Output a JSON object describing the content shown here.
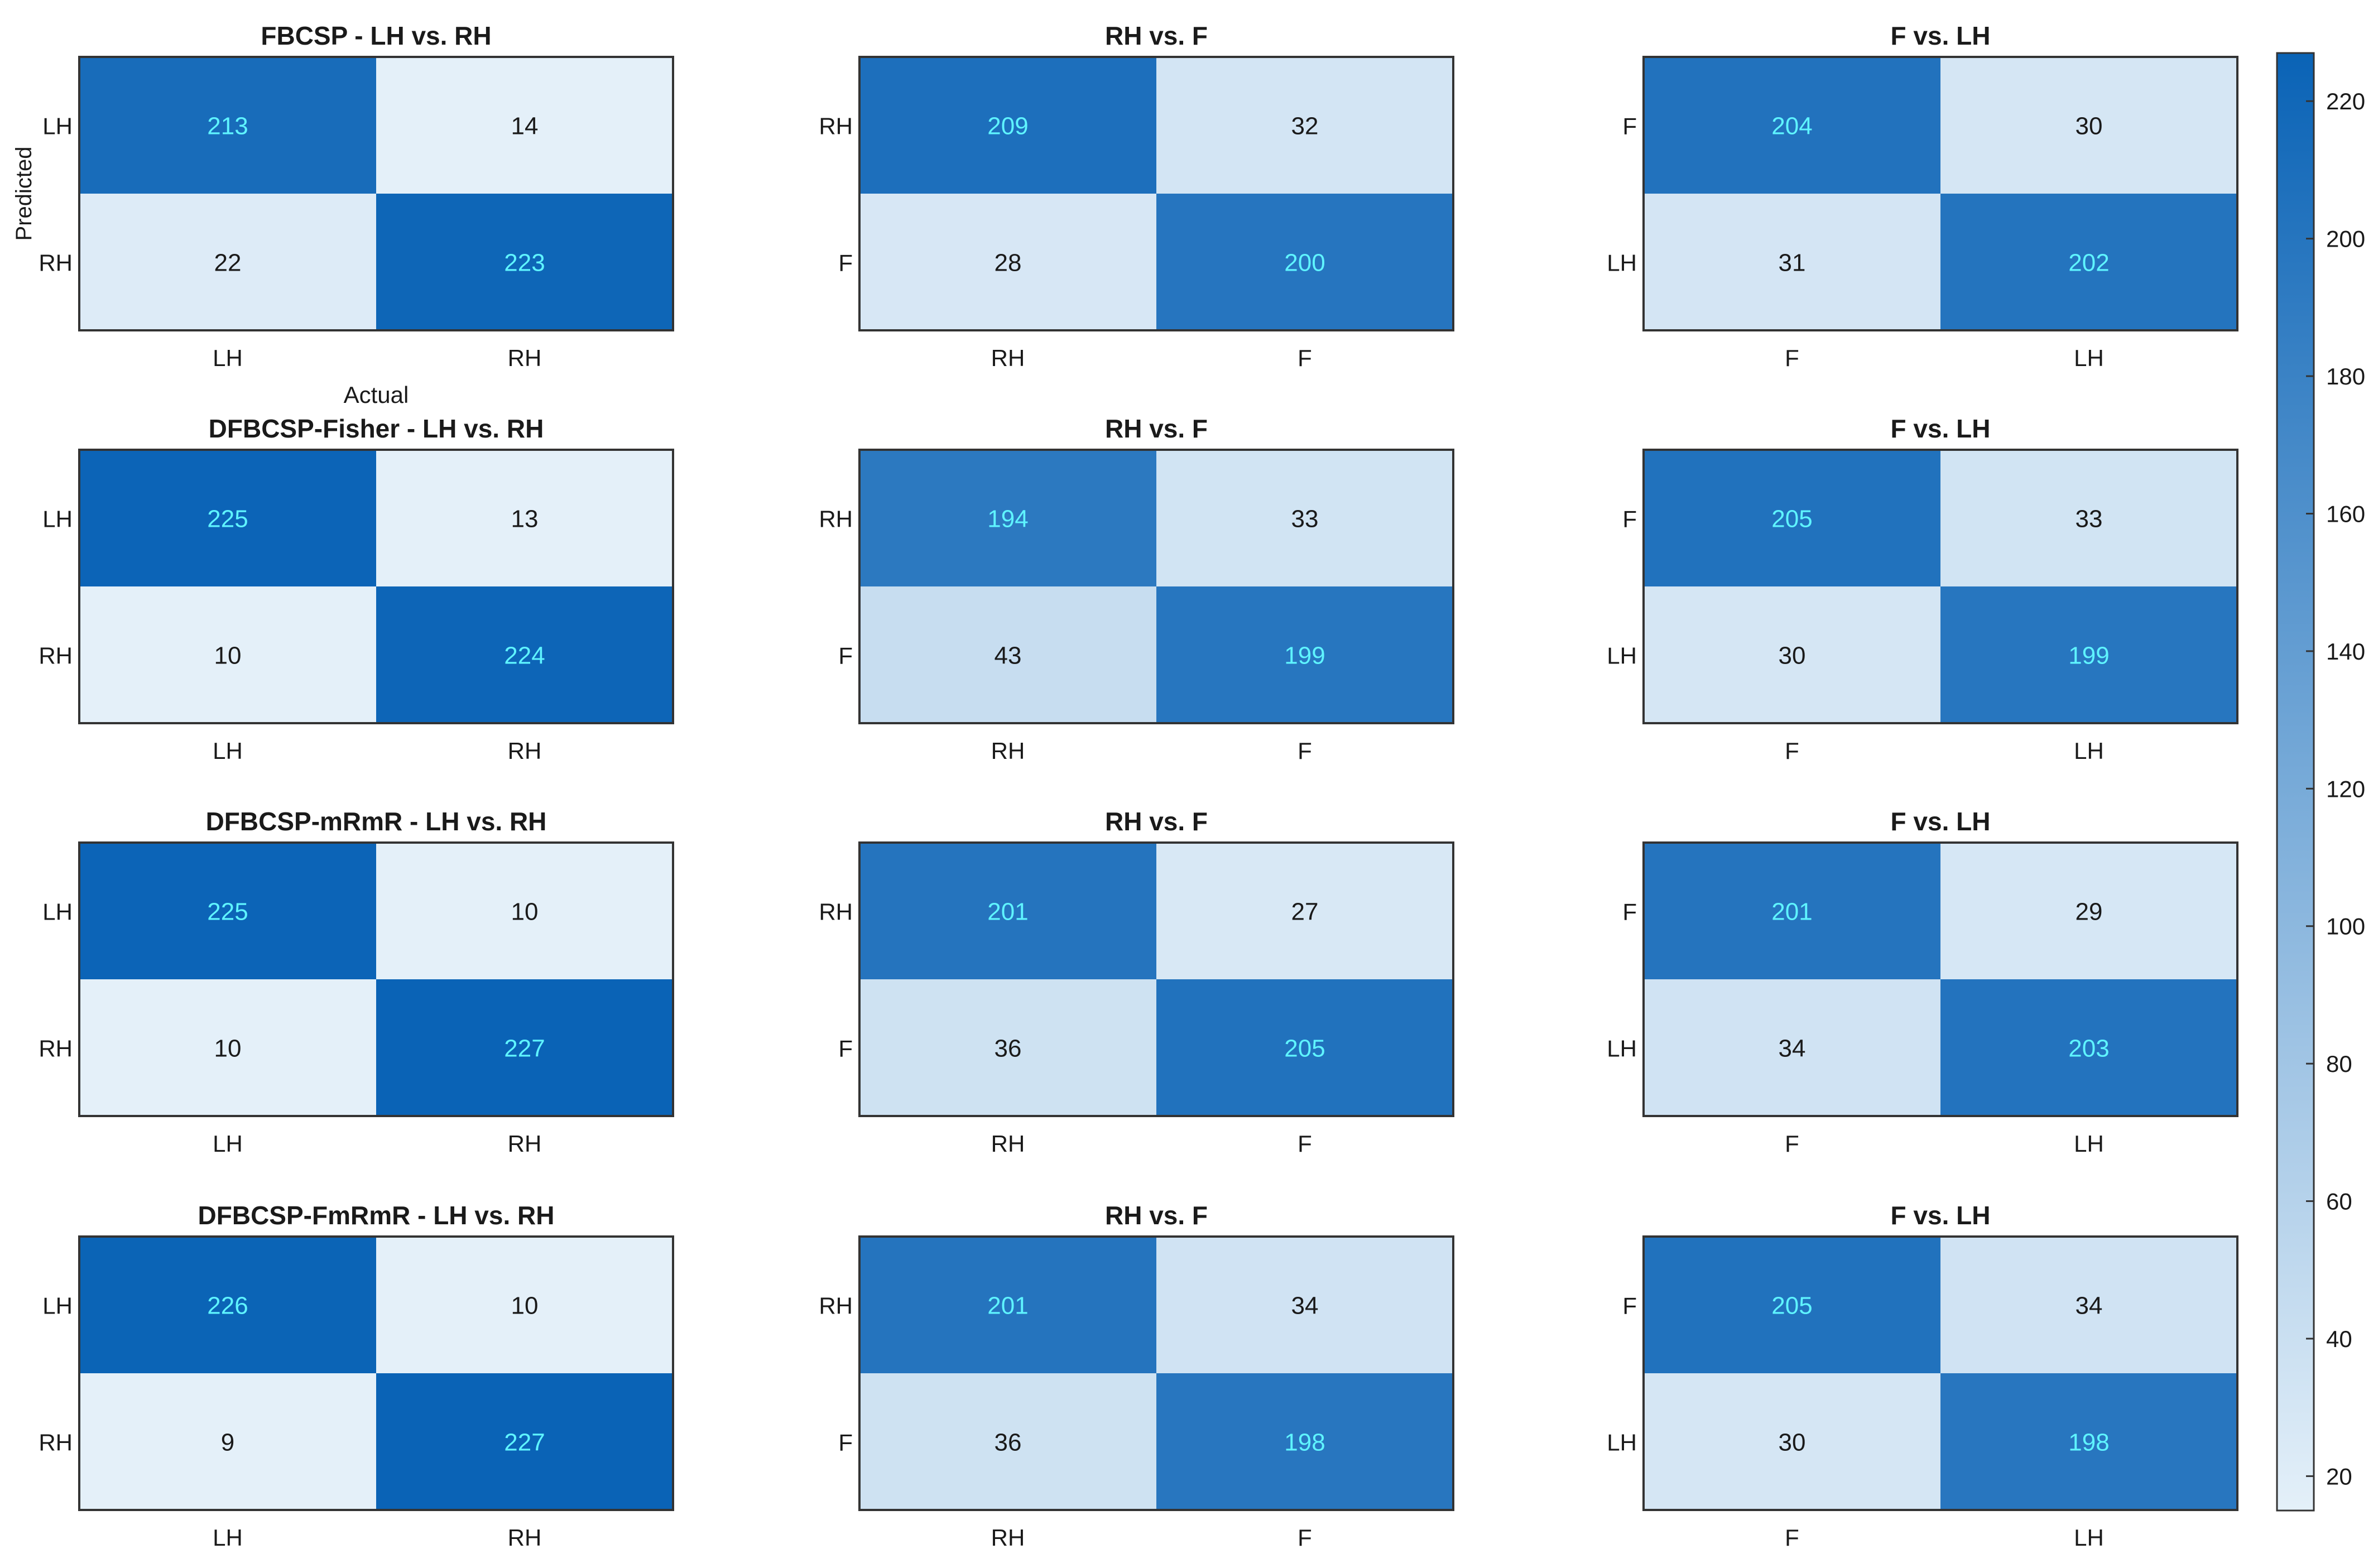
{
  "colors": {
    "low": "#e4f0f9",
    "high": "#0a63b6",
    "text_dark": "#1a1a1a",
    "text_light": "#5ff4ff",
    "border": "#333333"
  },
  "chart_data": {
    "type": "heatmap",
    "colorbar": {
      "min": 15,
      "max": 227,
      "ticks": [
        20,
        40,
        60,
        80,
        100,
        120,
        140,
        160,
        180,
        200,
        220
      ]
    },
    "first_panel_ylabel": "Predicted",
    "first_panel_xlabel": "Actual",
    "panels": [
      {
        "title": "FBCSP - LH vs. RH",
        "labels": [
          "LH",
          "RH"
        ],
        "matrix": [
          [
            213,
            14
          ],
          [
            22,
            223
          ]
        ]
      },
      {
        "title": "RH vs. F",
        "labels": [
          "RH",
          "F"
        ],
        "matrix": [
          [
            209,
            32
          ],
          [
            28,
            200
          ]
        ]
      },
      {
        "title": "F vs. LH",
        "labels": [
          "F",
          "LH"
        ],
        "matrix": [
          [
            204,
            30
          ],
          [
            31,
            202
          ]
        ]
      },
      {
        "title": "DFBCSP-Fisher - LH vs. RH",
        "labels": [
          "LH",
          "RH"
        ],
        "matrix": [
          [
            225,
            13
          ],
          [
            10,
            224
          ]
        ]
      },
      {
        "title": "RH vs. F",
        "labels": [
          "RH",
          "F"
        ],
        "matrix": [
          [
            194,
            33
          ],
          [
            43,
            199
          ]
        ]
      },
      {
        "title": "F vs. LH",
        "labels": [
          "F",
          "LH"
        ],
        "matrix": [
          [
            205,
            33
          ],
          [
            30,
            199
          ]
        ]
      },
      {
        "title": "DFBCSP-mRmR - LH vs. RH",
        "labels": [
          "LH",
          "RH"
        ],
        "matrix": [
          [
            225,
            10
          ],
          [
            10,
            227
          ]
        ]
      },
      {
        "title": "RH vs. F",
        "labels": [
          "RH",
          "F"
        ],
        "matrix": [
          [
            201,
            27
          ],
          [
            36,
            205
          ]
        ]
      },
      {
        "title": "F vs. LH",
        "labels": [
          "F",
          "LH"
        ],
        "matrix": [
          [
            201,
            29
          ],
          [
            34,
            203
          ]
        ]
      },
      {
        "title": "DFBCSP-FmRmR - LH vs. RH",
        "labels": [
          "LH",
          "RH"
        ],
        "matrix": [
          [
            226,
            10
          ],
          [
            9,
            227
          ]
        ]
      },
      {
        "title": "RH vs. F",
        "labels": [
          "RH",
          "F"
        ],
        "matrix": [
          [
            201,
            34
          ],
          [
            36,
            198
          ]
        ]
      },
      {
        "title": "F vs. LH",
        "labels": [
          "F",
          "LH"
        ],
        "matrix": [
          [
            205,
            34
          ],
          [
            30,
            198
          ]
        ]
      }
    ]
  }
}
